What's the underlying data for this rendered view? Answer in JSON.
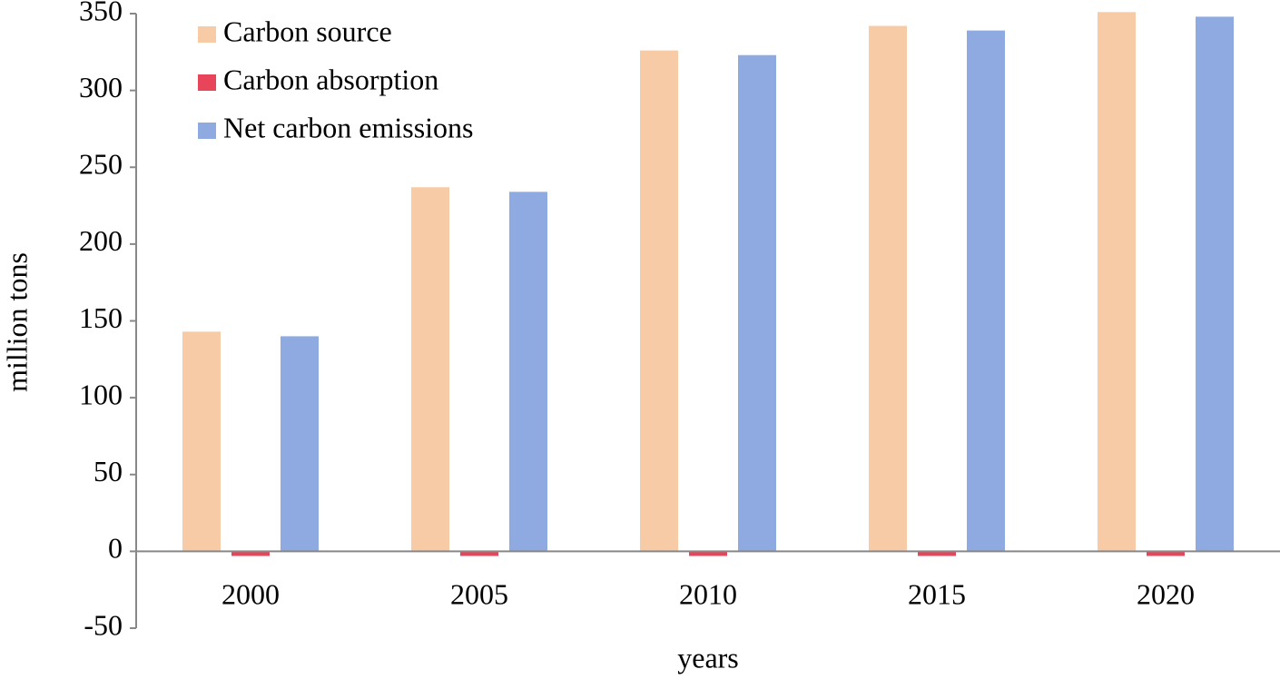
{
  "chart_data": {
    "type": "bar",
    "x_label": "years",
    "y_label": "million tons",
    "categories": [
      "2000",
      "2005",
      "2010",
      "2015",
      "2020"
    ],
    "series": [
      {
        "name": "Carbon source",
        "color": "#f8cba7",
        "values": [
          143,
          237,
          326,
          342,
          351
        ]
      },
      {
        "name": "Carbon absorption",
        "color": "#e8455a",
        "values": [
          -3,
          -3,
          -3,
          -3,
          -3
        ]
      },
      {
        "name": "Net carbon emissions",
        "color": "#8faae0",
        "values": [
          140,
          234,
          323,
          339,
          348
        ]
      }
    ],
    "ylim": [
      -50,
      350
    ],
    "yticks": [
      -50,
      0,
      50,
      100,
      150,
      200,
      250,
      300,
      350
    ],
    "grid": false,
    "legend": "top-left"
  }
}
